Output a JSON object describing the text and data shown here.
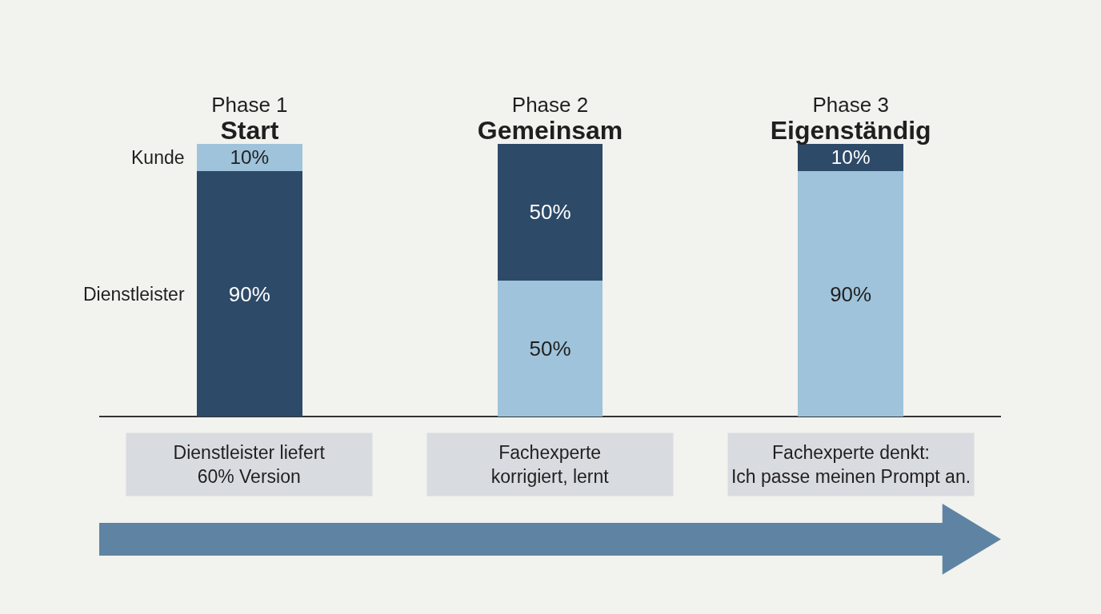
{
  "chart_data": {
    "type": "bar",
    "stacked": true,
    "legend": false,
    "grid": false,
    "categories": [
      "Phase 1\nStart",
      "Phase 2\nGemeinsam",
      "Phase 3\nEigenständig"
    ],
    "series": [
      {
        "name": "Dienstleister",
        "values": [
          90,
          50,
          90
        ],
        "value_labels": [
          "90%",
          "50%",
          "90%"
        ],
        "colors": [
          "#2d4a68",
          "#9fc3da",
          "#9fc3da"
        ]
      },
      {
        "name": "Kunde",
        "values": [
          10,
          50,
          10
        ],
        "value_labels": [
          "10%",
          "50%",
          "10%"
        ],
        "colors": [
          "#9fc3da",
          "#2d4a68",
          "#2d4a68"
        ]
      }
    ],
    "annotations": [
      "Dienstleister liefert\n60% Version",
      "Fachexperte\nkorrigiert, lernt",
      "Fachexperte denkt:\nIch passe meinen Prompt an."
    ]
  }
}
